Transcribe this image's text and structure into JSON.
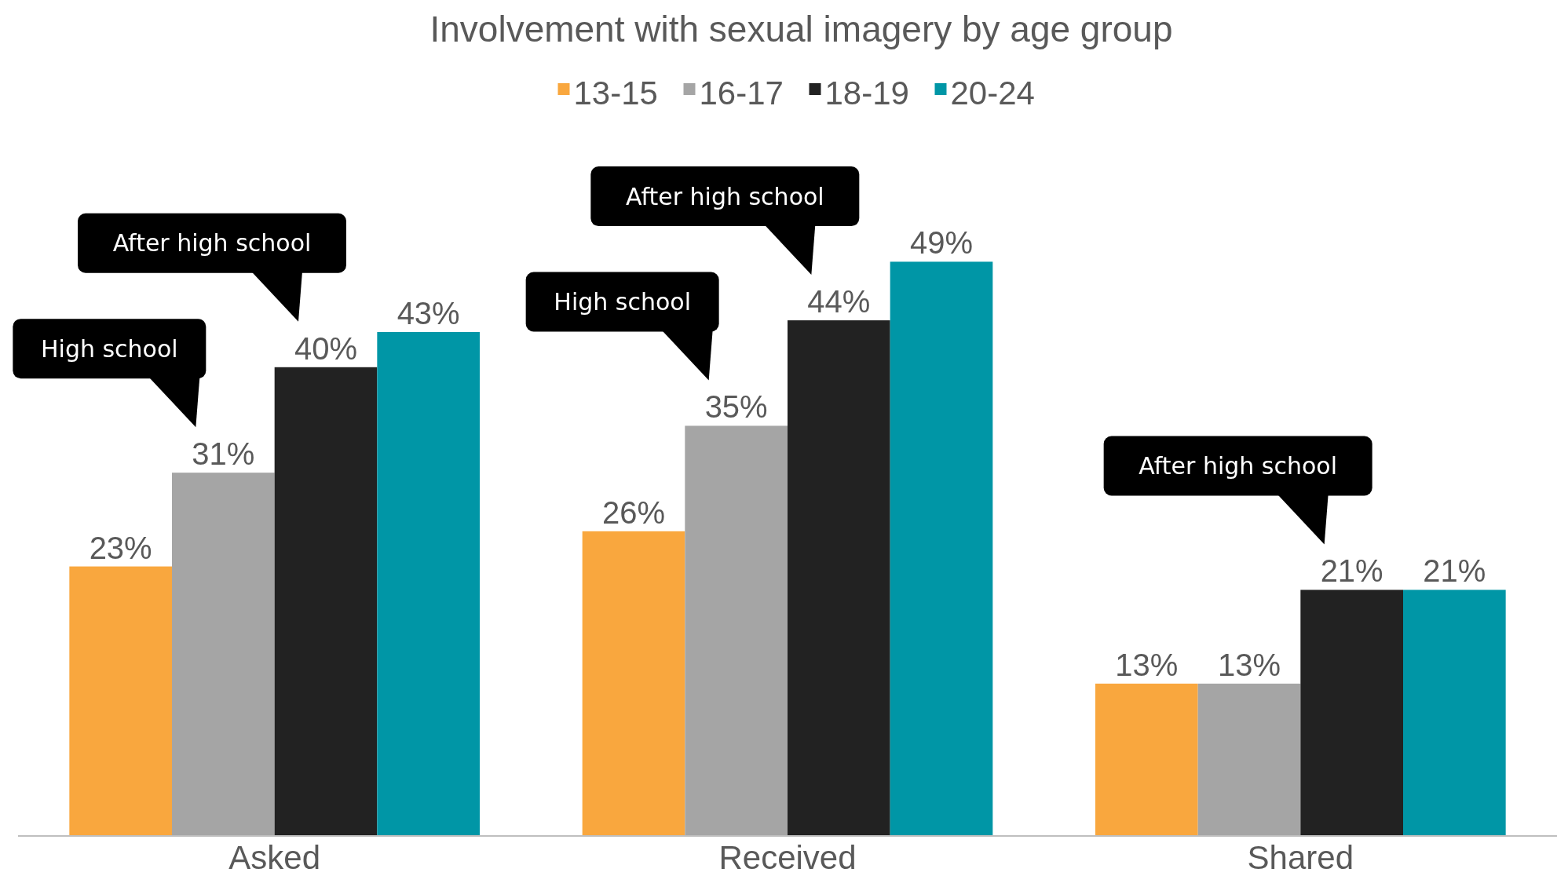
{
  "chart_data": {
    "type": "bar",
    "title": "Involvement with sexual imagery by age group",
    "categories": [
      "Asked",
      "Received",
      "Shared"
    ],
    "series": [
      {
        "name": "13-15",
        "color": "#f9a73e",
        "values": [
          23,
          26,
          13
        ],
        "value_labels": [
          "23%",
          "26%",
          "13%"
        ]
      },
      {
        "name": "16-17",
        "color": "#a5a5a5",
        "values": [
          31,
          35,
          13
        ],
        "value_labels": [
          "31%",
          "35%",
          "13%"
        ]
      },
      {
        "name": "18-19",
        "color": "#222222",
        "values": [
          40,
          44,
          21
        ],
        "value_labels": [
          "40%",
          "44%",
          "21%"
        ]
      },
      {
        "name": "20-24",
        "color": "#0096a6",
        "values": [
          43,
          49,
          21
        ],
        "value_labels": [
          "43%",
          "49%",
          "21%"
        ]
      }
    ],
    "legend": "top",
    "annotations": [
      "High school",
      "After high school",
      "High school",
      "After high school",
      "After high school"
    ]
  }
}
